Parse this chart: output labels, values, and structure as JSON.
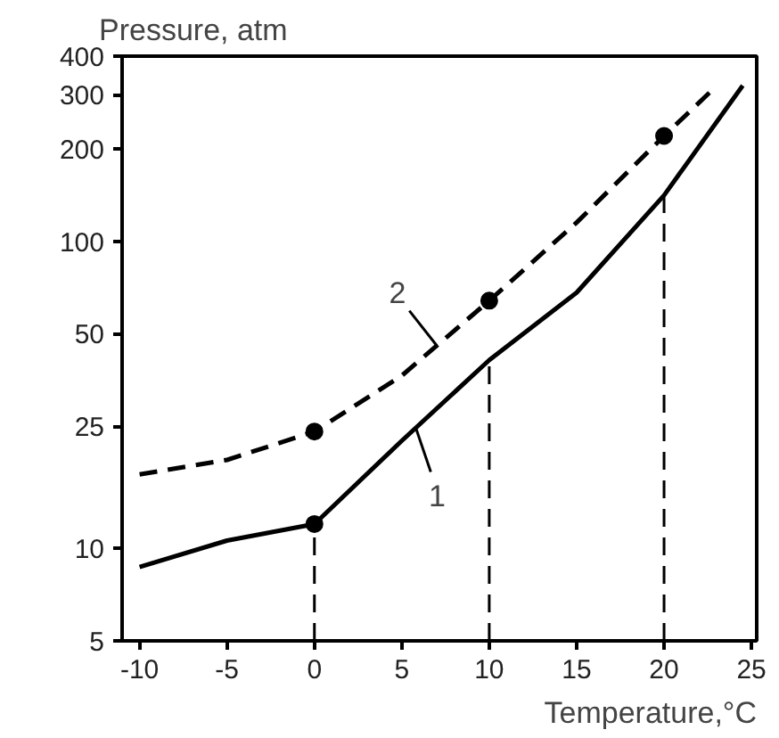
{
  "chart_data": {
    "type": "line",
    "xlabel": "Temperature,°C",
    "ylabel": "Pressure, atm",
    "log": "y",
    "xlim": [
      -11,
      25.3
    ],
    "ylim": [
      5,
      400
    ],
    "xticks": [
      -10,
      -5,
      0,
      5,
      10,
      15,
      20,
      25
    ],
    "yticks": [
      5,
      10,
      25,
      50,
      100,
      200,
      300,
      400
    ],
    "grid": false,
    "series": [
      {
        "name": "1",
        "color": "#000000",
        "line_style": "solid",
        "x": [
          -10,
          -5,
          0,
          5,
          10,
          15,
          20,
          24.5
        ],
        "values": [
          8.7,
          10.6,
          12,
          22.4,
          41,
          68,
          141,
          321
        ]
      },
      {
        "name": "2",
        "color": "#000000",
        "line_style": "dashed",
        "x": [
          -10,
          -5,
          0,
          5,
          10,
          15,
          20,
          22.8
        ],
        "values": [
          17.4,
          19.4,
          24,
          36.5,
          64,
          115,
          220,
          312
        ]
      },
      {
        "type": "scatter",
        "marker": "circle",
        "color": "#000000",
        "x": [
          0,
          0,
          10,
          20
        ],
        "values": [
          12,
          24,
          64,
          220
        ]
      }
    ],
    "ref_lines": [
      {
        "axis": "x",
        "value": 0,
        "line_style": "dashed",
        "color": "#000000"
      },
      {
        "axis": "x",
        "value": 10,
        "line_style": "dashed",
        "color": "#000000"
      },
      {
        "axis": "x",
        "value": 20,
        "line_style": "dashed",
        "color": "#000000"
      }
    ]
  }
}
